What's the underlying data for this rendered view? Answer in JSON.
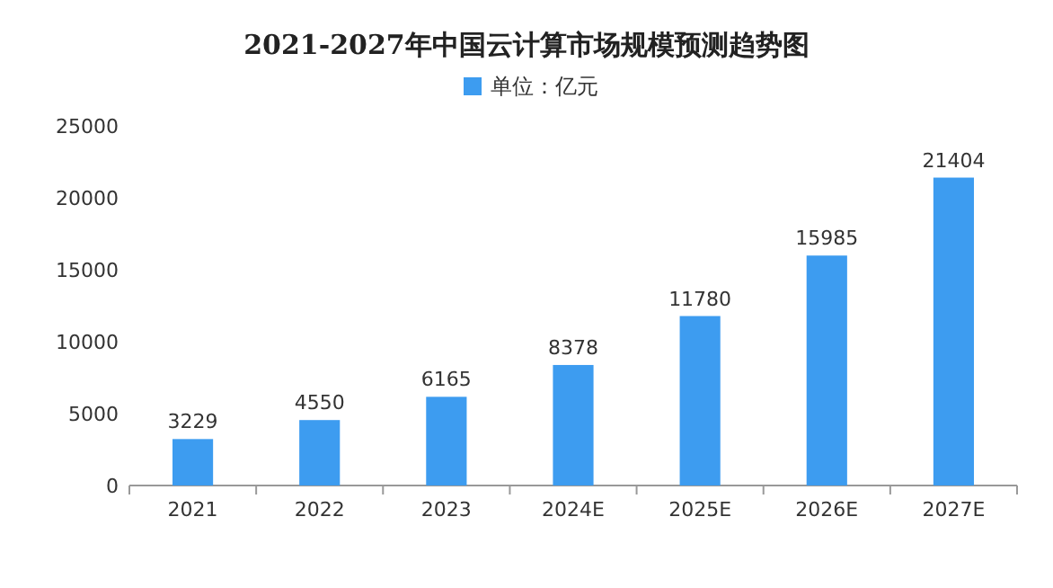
{
  "chart_data": {
    "type": "bar",
    "title": "2021-2027年中国云计算市场规模预测趋势图",
    "categories": [
      "2021",
      "2022",
      "2023",
      "2024E",
      "2025E",
      "2026E",
      "2027E"
    ],
    "series": [
      {
        "name": "单位：亿元",
        "color": "#3d9cf0",
        "values": [
          3229,
          4550,
          6165,
          8378,
          11780,
          15985,
          21404
        ]
      }
    ],
    "ylim": [
      0,
      25000
    ],
    "yticks": [
      0,
      5000,
      10000,
      15000,
      20000,
      25000
    ],
    "data_labels": true,
    "legend": "top"
  }
}
